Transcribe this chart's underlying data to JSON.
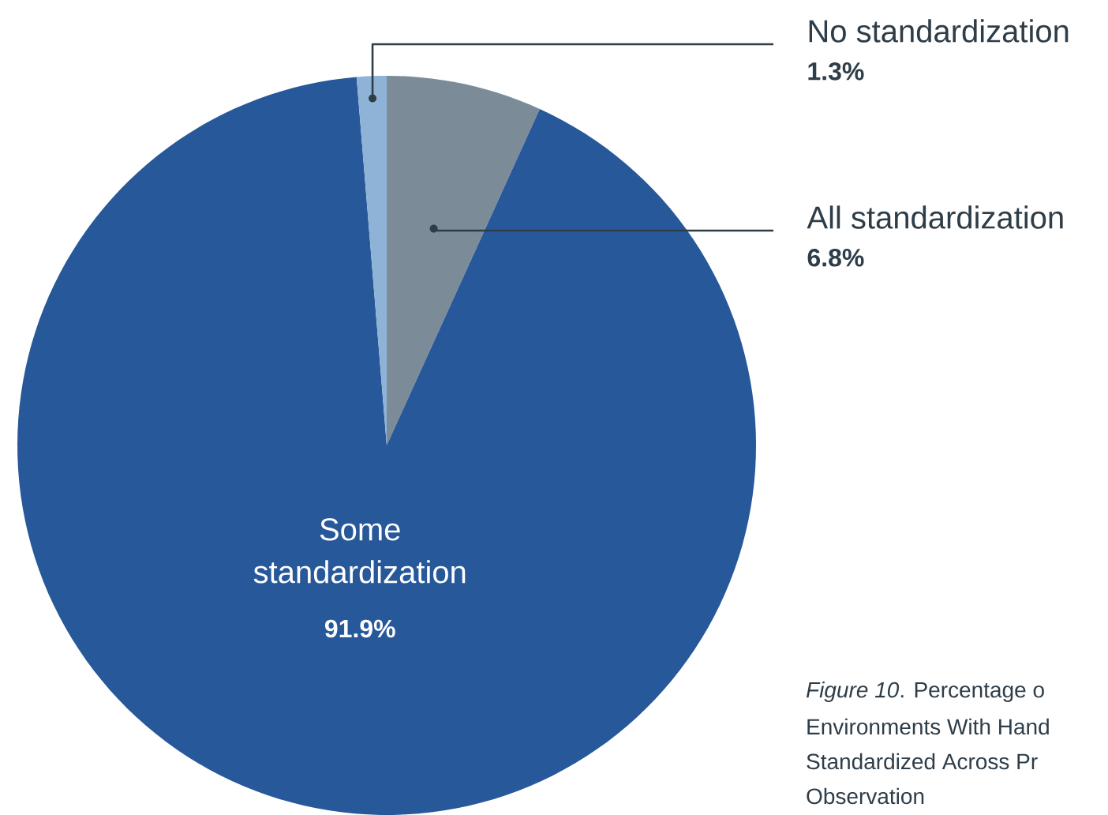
{
  "chart_data": {
    "type": "pie",
    "categories": [
      "All standardization",
      "Some standardization",
      "No standardization"
    ],
    "values": [
      6.8,
      91.9,
      1.3
    ],
    "colors": [
      "#7b8c98",
      "#27589a",
      "#8fb3d6"
    ],
    "value_labels": [
      "6.8%",
      "91.9%",
      "1.3%"
    ],
    "annotations": [
      "*Figure 10*. Percentage o",
      "Environments With Hand",
      "Standardized Across Pr",
      "Observation"
    ]
  }
}
